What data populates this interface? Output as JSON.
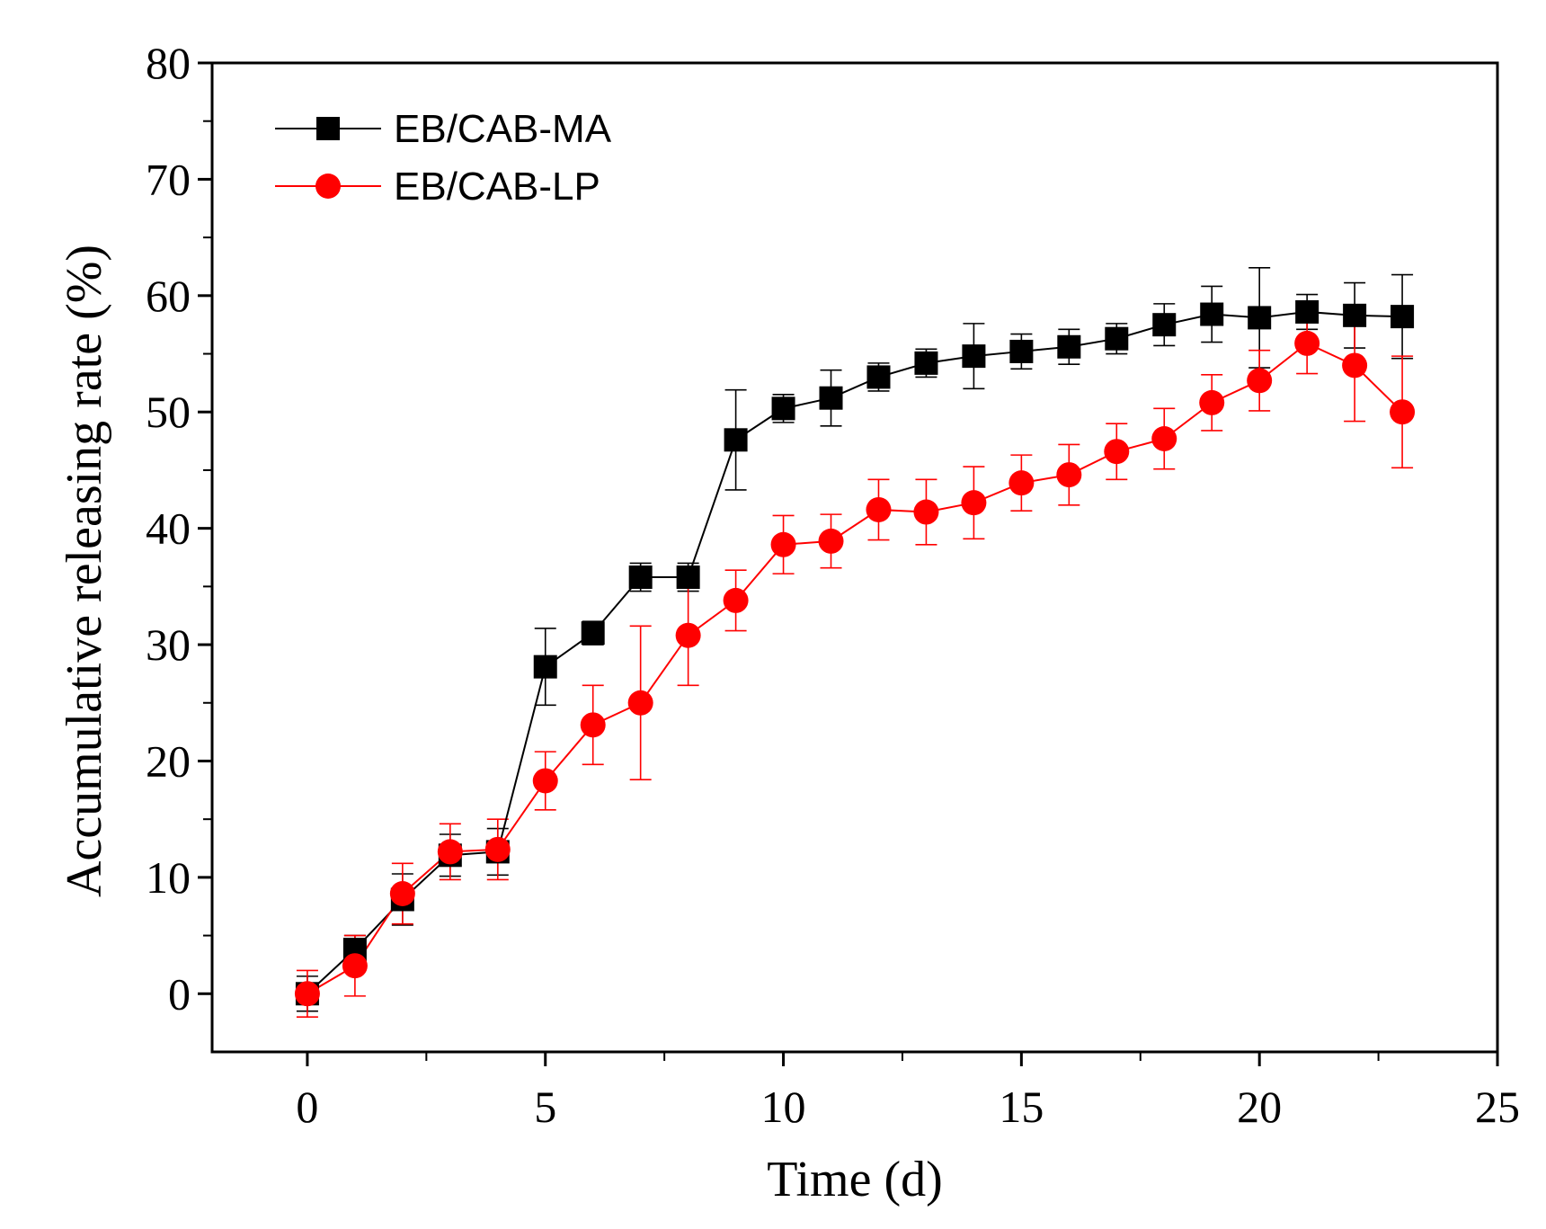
{
  "chart_data": {
    "type": "line",
    "xlabel": "Time (d)",
    "ylabel": "Accumulative releasing rate (%)",
    "xlim": [
      -2,
      25
    ],
    "ylim": [
      -5,
      80
    ],
    "xticks": [
      0,
      5,
      10,
      15,
      20,
      25
    ],
    "yticks": [
      0,
      10,
      20,
      30,
      40,
      50,
      60,
      70,
      80
    ],
    "legend_position": "top-left",
    "series": [
      {
        "name": "EB/CAB-MA",
        "color": "#000000",
        "marker": "square",
        "x": [
          0,
          1,
          2,
          3,
          4,
          5,
          6,
          7,
          8,
          9,
          10,
          11,
          12,
          13,
          14,
          15,
          16,
          17,
          18,
          19,
          20,
          21,
          22,
          23
        ],
        "y": [
          0,
          3.8,
          8.1,
          11.9,
          12.2,
          28.1,
          31.0,
          35.8,
          35.8,
          47.6,
          50.3,
          51.2,
          53.0,
          54.2,
          54.8,
          55.2,
          55.6,
          56.3,
          57.5,
          58.4,
          58.1,
          58.6,
          58.3,
          58.2
        ],
        "error": [
          1.5,
          1.2,
          2.2,
          1.8,
          2.0,
          3.3,
          1.0,
          1.2,
          1.2,
          4.3,
          1.2,
          2.4,
          1.2,
          1.2,
          2.8,
          1.5,
          1.5,
          1.3,
          1.8,
          2.4,
          4.3,
          1.5,
          2.8,
          3.6
        ]
      },
      {
        "name": "EB/CAB-LP",
        "color": "#ff0000",
        "marker": "circle",
        "x": [
          0,
          1,
          2,
          3,
          4,
          5,
          6,
          7,
          8,
          9,
          10,
          11,
          12,
          13,
          14,
          15,
          16,
          17,
          18,
          19,
          20,
          21,
          22,
          23
        ],
        "y": [
          0,
          2.4,
          8.6,
          12.2,
          12.4,
          18.3,
          23.1,
          25.0,
          30.8,
          33.8,
          38.6,
          38.9,
          41.6,
          41.4,
          42.2,
          43.9,
          44.6,
          46.6,
          47.7,
          50.8,
          52.7,
          55.9,
          54.0,
          50.0
        ],
        "error": [
          2.0,
          2.6,
          2.6,
          2.4,
          2.6,
          2.5,
          3.4,
          6.6,
          4.3,
          2.6,
          2.5,
          2.3,
          2.6,
          2.8,
          3.1,
          2.4,
          2.6,
          2.4,
          2.6,
          2.4,
          2.6,
          2.6,
          4.8,
          4.8
        ]
      }
    ]
  }
}
